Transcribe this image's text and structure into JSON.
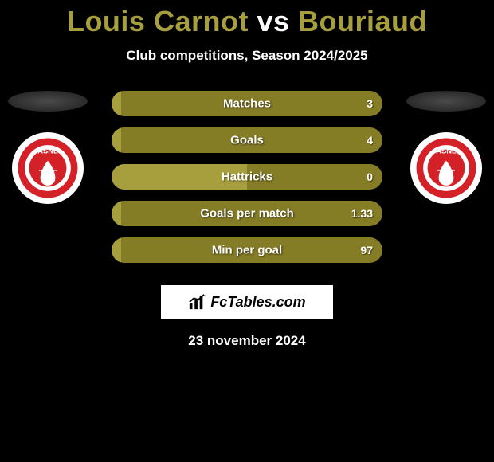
{
  "title": {
    "player1": "Louis Carnot",
    "vs": "vs",
    "player2": "Bouriaud",
    "color_player": "#a79e3e",
    "color_vs": "#ffffff"
  },
  "subtitle": "Club competitions, Season 2024/2025",
  "colors": {
    "left_bar": "#a79e3e",
    "right_bar": "#857c26",
    "background": "#000000",
    "text": "#ffffff"
  },
  "club_badge": {
    "outer": "#d42027",
    "inner": "#ffffff",
    "band_text": "ASNL"
  },
  "stats": [
    {
      "label": "Matches",
      "left_val": "",
      "right_val": "3",
      "left_pct": 3,
      "right_pct": 97
    },
    {
      "label": "Goals",
      "left_val": "",
      "right_val": "4",
      "left_pct": 3,
      "right_pct": 97
    },
    {
      "label": "Hattricks",
      "left_val": "",
      "right_val": "0",
      "left_pct": 50,
      "right_pct": 50
    },
    {
      "label": "Goals per match",
      "left_val": "",
      "right_val": "1.33",
      "left_pct": 3,
      "right_pct": 97
    },
    {
      "label": "Min per goal",
      "left_val": "",
      "right_val": "97",
      "left_pct": 3,
      "right_pct": 97
    }
  ],
  "brand": "FcTables.com",
  "date": "23 november 2024"
}
